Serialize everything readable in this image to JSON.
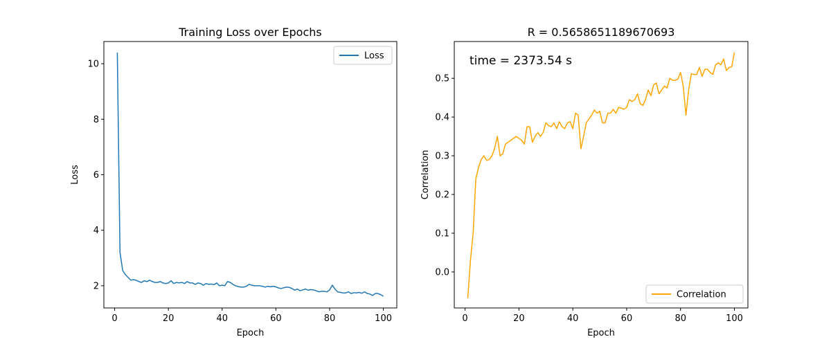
{
  "chart_data": [
    {
      "type": "line",
      "title": "Training Loss over Epochs",
      "xlabel": "Epoch",
      "ylabel": "Loss",
      "xlim": [
        -4.0,
        105.0
      ],
      "ylim": [
        1.2,
        10.8
      ],
      "xticks": [
        0,
        20,
        40,
        60,
        80,
        100
      ],
      "yticks": [
        2,
        4,
        6,
        8,
        10
      ],
      "legend_position": "top-right",
      "grid": false,
      "series": [
        {
          "name": "Loss",
          "color": "#1f77b4",
          "x": [
            1,
            2,
            3,
            4,
            5,
            6,
            7,
            8,
            9,
            10,
            11,
            12,
            13,
            14,
            15,
            16,
            17,
            18,
            19,
            20,
            21,
            22,
            23,
            24,
            25,
            26,
            27,
            28,
            29,
            30,
            31,
            32,
            33,
            34,
            35,
            36,
            37,
            38,
            39,
            40,
            41,
            42,
            43,
            44,
            45,
            46,
            47,
            48,
            49,
            50,
            51,
            52,
            53,
            54,
            55,
            56,
            57,
            58,
            59,
            60,
            61,
            62,
            63,
            64,
            65,
            66,
            67,
            68,
            69,
            70,
            71,
            72,
            73,
            74,
            75,
            76,
            77,
            78,
            79,
            80,
            81,
            82,
            83,
            84,
            85,
            86,
            87,
            88,
            89,
            90,
            91,
            92,
            93,
            94,
            95,
            96,
            97,
            98,
            99,
            100
          ],
          "values": [
            10.4,
            3.2,
            2.55,
            2.4,
            2.3,
            2.2,
            2.22,
            2.2,
            2.15,
            2.12,
            2.18,
            2.15,
            2.2,
            2.15,
            2.12,
            2.12,
            2.15,
            2.1,
            2.08,
            2.1,
            2.18,
            2.08,
            2.12,
            2.1,
            2.12,
            2.08,
            2.15,
            2.1,
            2.1,
            2.05,
            2.1,
            2.08,
            2.02,
            2.08,
            2.05,
            2.06,
            2.04,
            2.1,
            2.0,
            2.02,
            2.0,
            2.15,
            2.12,
            2.05,
            2.0,
            1.97,
            1.95,
            1.95,
            1.98,
            2.05,
            2.02,
            2.0,
            2.0,
            2.0,
            1.98,
            1.95,
            1.98,
            1.96,
            1.98,
            1.96,
            1.92,
            1.9,
            1.93,
            1.95,
            1.94,
            1.9,
            1.84,
            1.88,
            1.82,
            1.85,
            1.88,
            1.84,
            1.86,
            1.85,
            1.82,
            1.78,
            1.8,
            1.8,
            1.78,
            1.85,
            2.02,
            1.88,
            1.78,
            1.76,
            1.74,
            1.74,
            1.78,
            1.72,
            1.75,
            1.74,
            1.76,
            1.73,
            1.78,
            1.72,
            1.7,
            1.65,
            1.72,
            1.72,
            1.68,
            1.62
          ]
        }
      ]
    },
    {
      "type": "line",
      "title": "R = 0.5658651189670693",
      "annotation": "time = 2373.54 s",
      "xlabel": "Epoch",
      "ylabel": "Correlation",
      "xlim": [
        -4.0,
        105.0
      ],
      "ylim": [
        -0.093,
        0.595
      ],
      "xticks": [
        0,
        20,
        40,
        60,
        80,
        100
      ],
      "yticks": [
        0.0,
        0.1,
        0.2,
        0.3,
        0.4,
        0.5
      ],
      "legend_position": "lower-right",
      "grid": false,
      "series": [
        {
          "name": "Correlation",
          "color": "#ffa500",
          "x": [
            1,
            2,
            3,
            4,
            5,
            6,
            7,
            8,
            9,
            10,
            11,
            12,
            13,
            14,
            15,
            16,
            17,
            18,
            19,
            20,
            21,
            22,
            23,
            24,
            25,
            26,
            27,
            28,
            29,
            30,
            31,
            32,
            33,
            34,
            35,
            36,
            37,
            38,
            39,
            40,
            41,
            42,
            43,
            44,
            45,
            46,
            47,
            48,
            49,
            50,
            51,
            52,
            53,
            54,
            55,
            56,
            57,
            58,
            59,
            60,
            61,
            62,
            63,
            64,
            65,
            66,
            67,
            68,
            69,
            70,
            71,
            72,
            73,
            74,
            75,
            76,
            77,
            78,
            79,
            80,
            81,
            82,
            83,
            84,
            85,
            86,
            87,
            88,
            89,
            90,
            91,
            92,
            93,
            94,
            95,
            96,
            97,
            98,
            99,
            100
          ],
          "values": [
            -0.068,
            0.03,
            0.1,
            0.24,
            0.27,
            0.29,
            0.3,
            0.288,
            0.29,
            0.3,
            0.32,
            0.35,
            0.3,
            0.305,
            0.33,
            0.335,
            0.34,
            0.345,
            0.35,
            0.345,
            0.34,
            0.33,
            0.375,
            0.375,
            0.335,
            0.35,
            0.36,
            0.35,
            0.36,
            0.385,
            0.378,
            0.375,
            0.385,
            0.37,
            0.388,
            0.375,
            0.37,
            0.385,
            0.388,
            0.37,
            0.41,
            0.405,
            0.318,
            0.35,
            0.385,
            0.395,
            0.405,
            0.418,
            0.41,
            0.415,
            0.385,
            0.385,
            0.41,
            0.41,
            0.42,
            0.41,
            0.425,
            0.423,
            0.42,
            0.425,
            0.445,
            0.44,
            0.445,
            0.46,
            0.435,
            0.43,
            0.445,
            0.47,
            0.455,
            0.483,
            0.488,
            0.46,
            0.47,
            0.48,
            0.475,
            0.5,
            0.495,
            0.495,
            0.498,
            0.515,
            0.48,
            0.405,
            0.47,
            0.512,
            0.51,
            0.51,
            0.528,
            0.505,
            0.523,
            0.523,
            0.515,
            0.51,
            0.535,
            0.54,
            0.535,
            0.55,
            0.52,
            0.528,
            0.53,
            0.567
          ]
        }
      ]
    }
  ]
}
